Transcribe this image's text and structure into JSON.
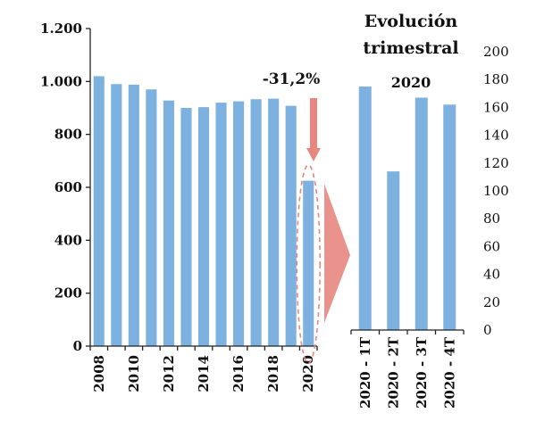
{
  "colors": {
    "bar": "#7DB2E0",
    "highlight": "#E8877F",
    "axis": "#222222",
    "text": "#111111"
  },
  "annotation": {
    "change_label": "-31,2%"
  },
  "chart_data": [
    {
      "type": "bar",
      "categories": [
        "2008",
        "2009",
        "2010",
        "2011",
        "2012",
        "2013",
        "2014",
        "2015",
        "2016",
        "2017",
        "2018",
        "2019",
        "2020"
      ],
      "tick_labels": [
        "2008",
        "",
        "2010",
        "",
        "2012",
        "",
        "2014",
        "",
        "2016",
        "",
        "2018",
        "",
        "2020"
      ],
      "values": [
        1020,
        990,
        988,
        970,
        928,
        900,
        903,
        920,
        925,
        933,
        935,
        908,
        625
      ],
      "ylim": [
        0,
        1200
      ],
      "yticks": [
        0,
        200,
        400,
        600,
        800,
        1000,
        1200
      ],
      "ytick_labels": [
        "0",
        "200",
        "400",
        "600",
        "800",
        "1.000",
        "1.200"
      ],
      "highlight_category": "2020",
      "grid": false,
      "title": "",
      "xlabel": "",
      "ylabel": ""
    },
    {
      "type": "bar",
      "title": "Evolución trimestral",
      "title_lines": [
        "Evolución",
        "trimestral"
      ],
      "subtitle": "2020",
      "categories": [
        "2020 - 1T",
        "2020 - 2T",
        "2020 - 3T",
        "2020 - 4T"
      ],
      "values": [
        175,
        114,
        167,
        162
      ],
      "ylim": [
        0,
        200
      ],
      "yticks": [
        0,
        20,
        40,
        60,
        80,
        100,
        120,
        140,
        160,
        180,
        200
      ],
      "ytick_labels": [
        "0",
        "20",
        "40",
        "60",
        "80",
        "100",
        "120",
        "140",
        "160",
        "180",
        "200"
      ],
      "yaxis_position": "right",
      "grid": false,
      "xlabel": "",
      "ylabel": ""
    }
  ]
}
